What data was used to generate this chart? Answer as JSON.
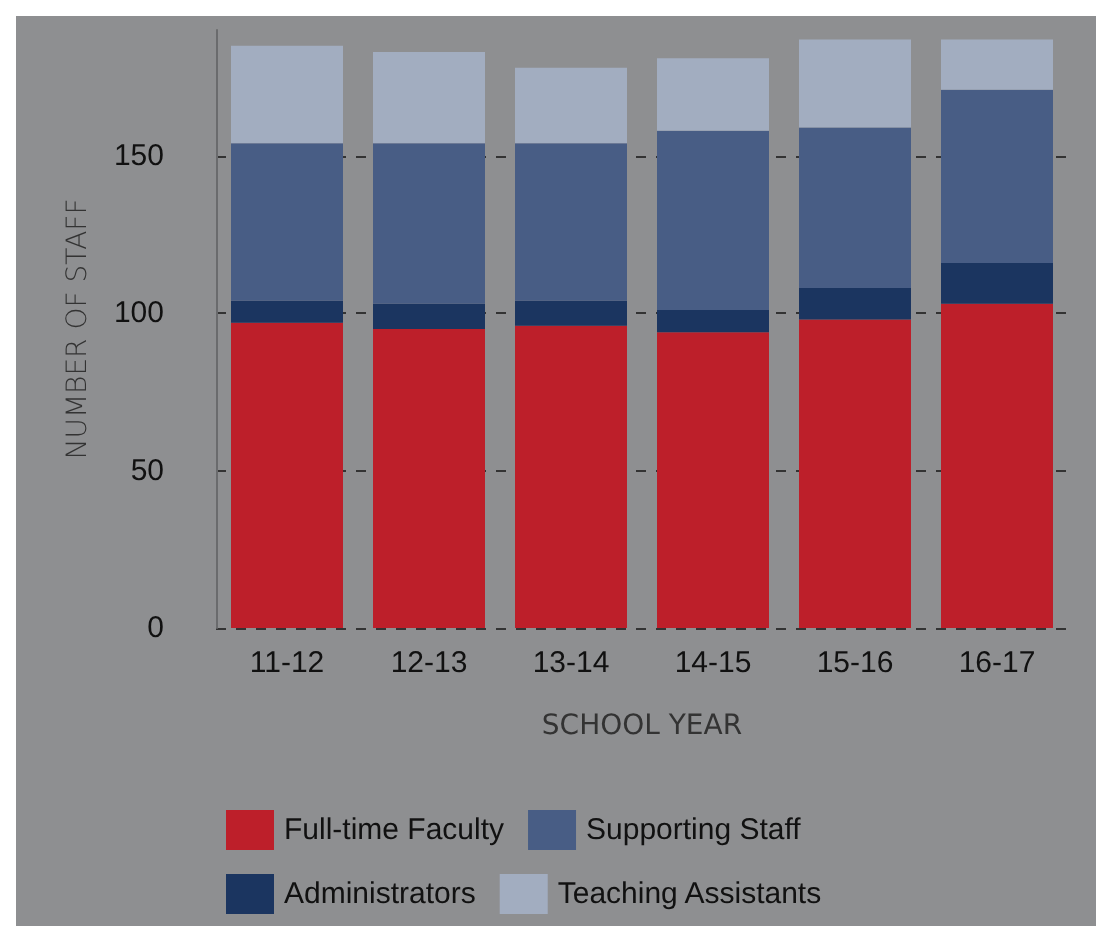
{
  "chart_data": {
    "type": "bar",
    "stacked": true,
    "xlabel": "SCHOOL YEAR",
    "ylabel": "NUMBER OF STAFF",
    "categories": [
      "11-12",
      "12-13",
      "13-14",
      "14-15",
      "15-16",
      "16-17"
    ],
    "series": [
      {
        "name": "Full-time Faculty",
        "color": "#bd1f2a",
        "values": [
          97,
          95,
          96,
          94,
          98,
          103
        ]
      },
      {
        "name": "Administrators",
        "color": "#1b3560",
        "values": [
          7,
          8,
          8,
          7,
          10,
          13
        ]
      },
      {
        "name": "Supporting Staff",
        "color": "#485d85",
        "values": [
          50,
          51,
          50,
          57,
          51,
          55
        ]
      },
      {
        "name": "Teaching Assistants",
        "color": "#a2adc0",
        "values": [
          31,
          29,
          24,
          23,
          28,
          16
        ]
      }
    ],
    "ylim": [
      0,
      190
    ],
    "yticks": [
      0,
      50,
      100,
      150
    ],
    "grid": "y",
    "legend": "bottom"
  }
}
